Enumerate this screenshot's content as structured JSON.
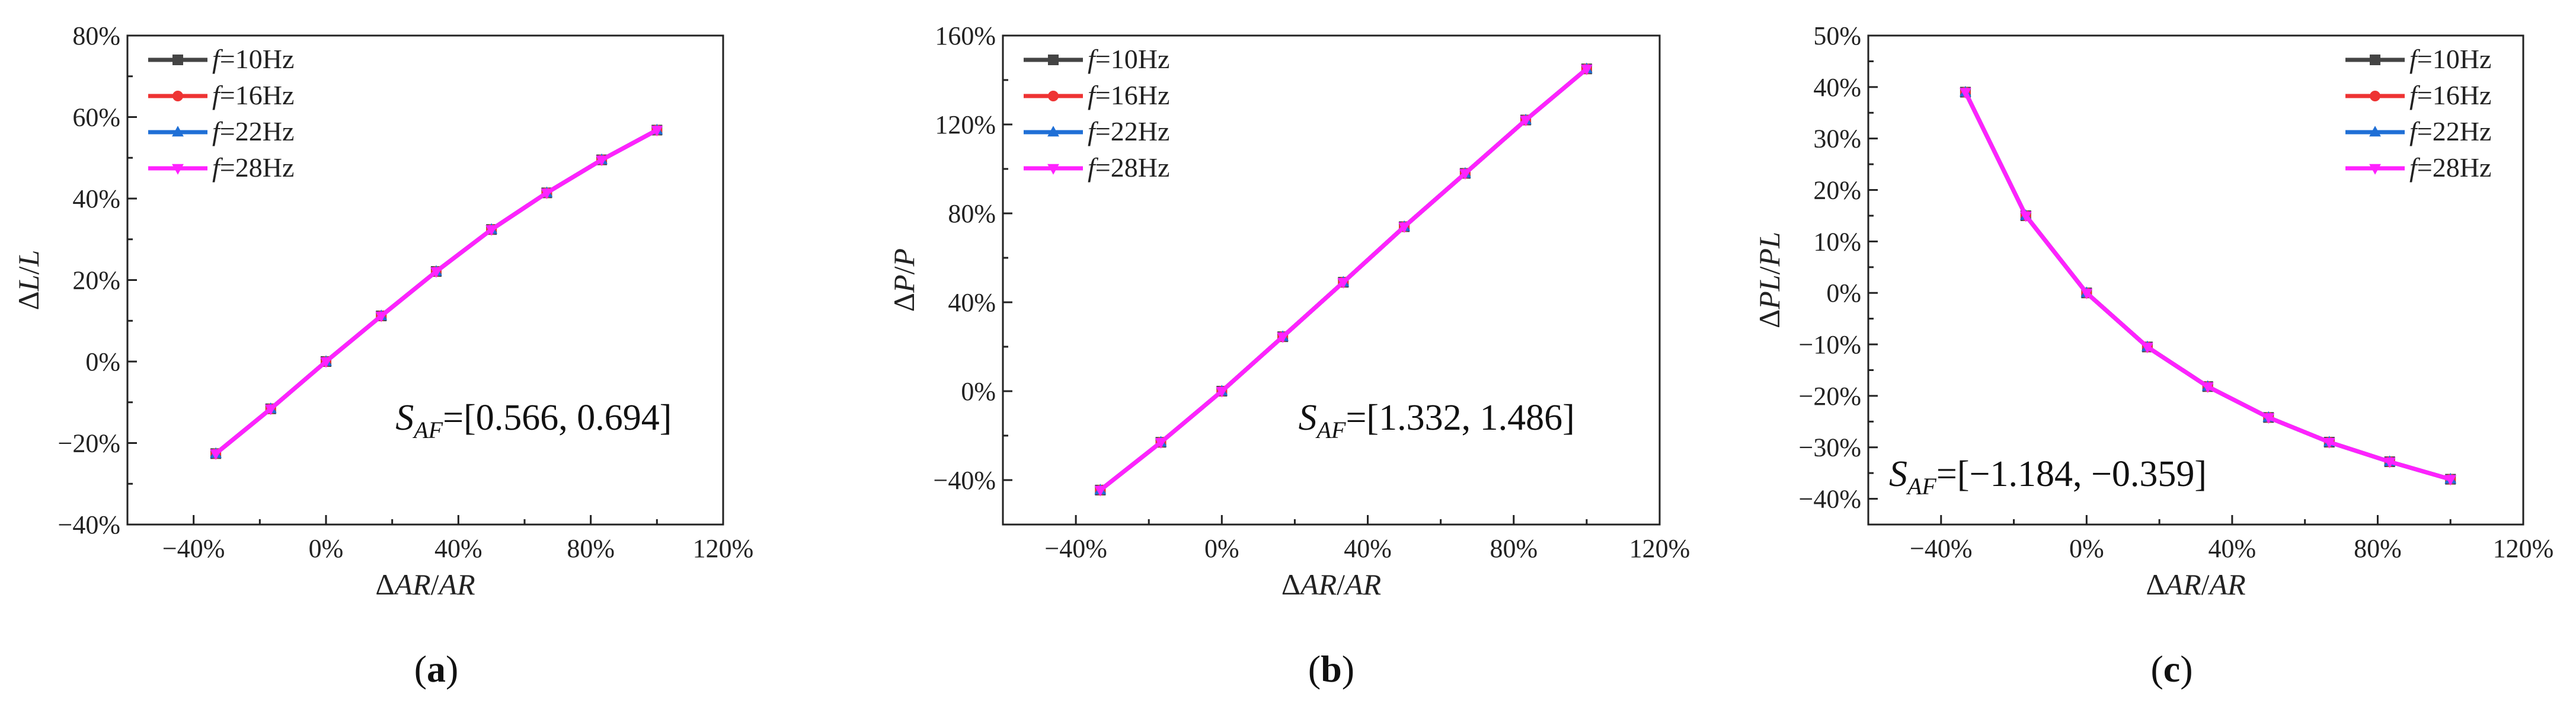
{
  "figure": {
    "panel_labels": [
      "(a)",
      "(b)",
      "(c)"
    ]
  },
  "chart_data": [
    {
      "type": "line",
      "panel": "(a)",
      "xlabel": "ΔAR/AR",
      "ylabel": "ΔL/L",
      "xlim": [
        -60,
        120
      ],
      "ylim": [
        -40,
        80
      ],
      "xticks": [
        -40,
        0,
        40,
        80,
        120
      ],
      "yticks": [
        -40,
        -20,
        0,
        20,
        40,
        60,
        80
      ],
      "x": [
        -33.3,
        -16.7,
        0,
        16.7,
        33.3,
        50,
        66.7,
        83.3,
        100
      ],
      "series": [
        {
          "name": "f=10Hz",
          "prefix": "f",
          "suffix": "=10Hz",
          "color": "#444444",
          "marker": "square",
          "values": [
            -22.6,
            -11.6,
            0,
            11.2,
            22.1,
            32.4,
            41.4,
            49.5,
            56.8
          ]
        },
        {
          "name": "f=16Hz",
          "prefix": "f",
          "suffix": "=16Hz",
          "color": "#ee3333",
          "marker": "circle",
          "values": [
            -22.6,
            -11.6,
            0,
            11.2,
            22.1,
            32.4,
            41.4,
            49.5,
            56.8
          ]
        },
        {
          "name": "f=22Hz",
          "prefix": "f",
          "suffix": "=22Hz",
          "color": "#1f6fd6",
          "marker": "triangle-up",
          "values": [
            -22.6,
            -11.6,
            0,
            11.2,
            22.1,
            32.4,
            41.4,
            49.5,
            56.8
          ]
        },
        {
          "name": "f=28Hz",
          "prefix": "f",
          "suffix": "=28Hz",
          "color": "#ff22ff",
          "marker": "triangle-down",
          "values": [
            -22.6,
            -11.6,
            0,
            11.2,
            22.1,
            32.4,
            41.4,
            49.5,
            56.8
          ]
        }
      ],
      "legend": "top-left",
      "annotation": {
        "symbol": "S",
        "subscript": "AF",
        "text": "=[0.566, 0.694]",
        "position": "bottom-right"
      }
    },
    {
      "type": "line",
      "panel": "(b)",
      "xlabel": "ΔAR/AR",
      "ylabel": "ΔP/P",
      "xlim": [
        -60,
        120
      ],
      "ylim": [
        -60,
        160
      ],
      "xticks": [
        -40,
        0,
        40,
        80,
        120
      ],
      "yticks": [
        -40,
        0,
        40,
        80,
        120,
        160
      ],
      "x": [
        -33.3,
        -16.7,
        0,
        16.7,
        33.3,
        50,
        66.7,
        83.3,
        100
      ],
      "series": [
        {
          "name": "f=10Hz",
          "prefix": "f",
          "suffix": "=10Hz",
          "color": "#444444",
          "marker": "square",
          "values": [
            -44.5,
            -23.0,
            0,
            24.5,
            49.0,
            74.0,
            98.0,
            122.0,
            145.0
          ]
        },
        {
          "name": "f=16Hz",
          "prefix": "f",
          "suffix": "=16Hz",
          "color": "#ee3333",
          "marker": "circle",
          "values": [
            -44.5,
            -23.0,
            0,
            24.5,
            49.0,
            74.0,
            98.0,
            122.0,
            145.0
          ]
        },
        {
          "name": "f=22Hz",
          "prefix": "f",
          "suffix": "=22Hz",
          "color": "#1f6fd6",
          "marker": "triangle-up",
          "values": [
            -44.5,
            -23.0,
            0,
            24.5,
            49.0,
            74.0,
            98.0,
            122.0,
            145.0
          ]
        },
        {
          "name": "f=28Hz",
          "prefix": "f",
          "suffix": "=28Hz",
          "color": "#ff22ff",
          "marker": "triangle-down",
          "values": [
            -44.5,
            -23.0,
            0,
            24.5,
            49.0,
            74.0,
            98.0,
            122.0,
            145.0
          ]
        }
      ],
      "legend": "top-left",
      "annotation": {
        "symbol": "S",
        "subscript": "AF",
        "text": "=[1.332, 1.486]",
        "position": "bottom-right"
      }
    },
    {
      "type": "line",
      "panel": "(c)",
      "xlabel": "ΔAR/AR",
      "ylabel": "ΔPL/PL",
      "xlim": [
        -60,
        120
      ],
      "ylim": [
        -45,
        50
      ],
      "xticks": [
        -40,
        0,
        40,
        80,
        120
      ],
      "yticks": [
        -40,
        -30,
        -20,
        -10,
        0,
        10,
        20,
        30,
        40,
        50
      ],
      "x": [
        -33.3,
        -16.7,
        0,
        16.7,
        33.3,
        50,
        66.7,
        83.3,
        100
      ],
      "series": [
        {
          "name": "f=10Hz",
          "prefix": "f",
          "suffix": "=10Hz",
          "color": "#444444",
          "marker": "square",
          "values": [
            39.0,
            15.0,
            0,
            -10.5,
            -18.2,
            -24.2,
            -29.0,
            -32.8,
            -36.2
          ]
        },
        {
          "name": "f=16Hz",
          "prefix": "f",
          "suffix": "=16Hz",
          "color": "#ee3333",
          "marker": "circle",
          "values": [
            39.0,
            15.0,
            0,
            -10.5,
            -18.2,
            -24.2,
            -29.0,
            -32.8,
            -36.2
          ]
        },
        {
          "name": "f=22Hz",
          "prefix": "f",
          "suffix": "=22Hz",
          "color": "#1f6fd6",
          "marker": "triangle-up",
          "values": [
            39.0,
            15.0,
            0,
            -10.5,
            -18.2,
            -24.2,
            -29.0,
            -32.8,
            -36.2
          ]
        },
        {
          "name": "f=28Hz",
          "prefix": "f",
          "suffix": "=28Hz",
          "color": "#ff22ff",
          "marker": "triangle-down",
          "values": [
            39.0,
            15.0,
            0,
            -10.5,
            -18.2,
            -24.2,
            -29.0,
            -32.8,
            -36.2
          ]
        }
      ],
      "legend": "top-right",
      "annotation": {
        "symbol": "S",
        "subscript": "AF",
        "text": "=[−1.184, −0.359]",
        "position": "bottom-left"
      }
    }
  ]
}
